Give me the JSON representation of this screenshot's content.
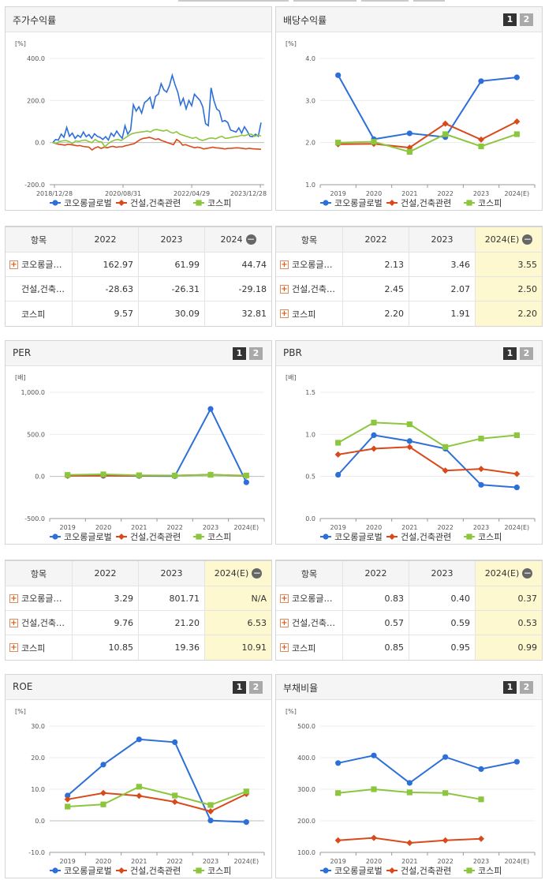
{
  "colors": {
    "group": "#2d6fd8",
    "industry": "#d84a1b",
    "kospi": "#8cc63f"
  },
  "legend": [
    "코오롱글로벌",
    "건설,건축관련",
    "코스피"
  ],
  "pager": [
    "1",
    "2"
  ],
  "panels": {
    "stock": {
      "title": "주가수익률",
      "unit": "[%]"
    },
    "dividend": {
      "title": "배당수익률",
      "unit": "[%]"
    },
    "per": {
      "title": "PER",
      "unit": "[배]"
    },
    "pbr": {
      "title": "PBR",
      "unit": "[배]"
    },
    "roe": {
      "title": "ROE",
      "unit": "[%]"
    },
    "debt": {
      "title": "부채비율",
      "unit": "[%]"
    }
  },
  "chart_data": [
    {
      "id": "stock",
      "type": "line",
      "x_ticks": [
        "2018/12/28",
        "2020/08/31",
        "2022/04/29",
        "2023/12/28"
      ],
      "y_ticks": [
        "400.0",
        "200.0",
        "0.0",
        "-200.0"
      ],
      "ylim": [
        -200,
        400
      ],
      "series": [
        {
          "name": "코오롱글로벌",
          "values": [
            0,
            15,
            12,
            40,
            25,
            72,
            30,
            45,
            20,
            35,
            25,
            50,
            28,
            38,
            20,
            42,
            30,
            25,
            15,
            28,
            12,
            45,
            30,
            55,
            35,
            20,
            80,
            40,
            60,
            180,
            150,
            170,
            140,
            190,
            200,
            215,
            160,
            220,
            230,
            280,
            250,
            240,
            270,
            320,
            275,
            240,
            180,
            210,
            160,
            200,
            175,
            230,
            215,
            200,
            170,
            90,
            80,
            260,
            200,
            160,
            150,
            100,
            105,
            95,
            60,
            55,
            50,
            70,
            45,
            75,
            55,
            30,
            28,
            40,
            30,
            95
          ]
        },
        {
          "name": "건설,건축관련",
          "values": [
            0,
            -5,
            -8,
            -10,
            -12,
            -8,
            -10,
            -12,
            -15,
            -14,
            -18,
            -20,
            -22,
            -35,
            -25,
            -20,
            -28,
            -22,
            -25,
            -20,
            -18,
            -22,
            -20,
            -20,
            -15,
            -12,
            -8,
            -5,
            5,
            15,
            20,
            22,
            25,
            20,
            15,
            18,
            10,
            5,
            0,
            -5,
            -10,
            15,
            5,
            -12,
            -10,
            -15,
            -20,
            -25,
            -22,
            -25,
            -30,
            -28,
            -25,
            -22,
            -25,
            -26,
            -28,
            -30,
            -28,
            -27,
            -26,
            -25,
            -26,
            -28,
            -30,
            -27,
            -29,
            -30,
            -31,
            -32
          ]
        },
        {
          "name": "코스피",
          "values": [
            0,
            -5,
            5,
            8,
            10,
            5,
            -5,
            8,
            5,
            10,
            12,
            5,
            0,
            15,
            5,
            3,
            -20,
            -5,
            5,
            12,
            15,
            10,
            20,
            30,
            40,
            45,
            48,
            50,
            52,
            55,
            50,
            60,
            62,
            58,
            55,
            60,
            50,
            45,
            52,
            40,
            35,
            30,
            25,
            20,
            25,
            15,
            10,
            15,
            20,
            22,
            18,
            25,
            30,
            20,
            22,
            25,
            28,
            30,
            35,
            33,
            38,
            40,
            30,
            35,
            32
          ]
        }
      ]
    },
    {
      "id": "dividend",
      "type": "line",
      "categories": [
        "2019",
        "2020",
        "2021",
        "2022",
        "2023",
        "2024(E)"
      ],
      "y_ticks": [
        "4.0",
        "3.0",
        "2.0",
        "1.0"
      ],
      "ylim": [
        1,
        4
      ],
      "series": [
        {
          "name": "코오롱글로벌",
          "values": [
            3.6,
            2.08,
            2.22,
            2.13,
            3.46,
            3.55
          ]
        },
        {
          "name": "건설,건축관련",
          "values": [
            1.96,
            1.97,
            1.88,
            2.45,
            2.07,
            2.5
          ]
        },
        {
          "name": "코스피",
          "values": [
            2.0,
            2.02,
            1.78,
            2.2,
            1.91,
            2.2
          ]
        }
      ]
    },
    {
      "id": "per",
      "type": "line",
      "categories": [
        "2019",
        "2020",
        "2021",
        "2022",
        "2023",
        "2024(E)"
      ],
      "y_ticks": [
        "1,000.0",
        "500.0",
        "0.0",
        "-500.0"
      ],
      "ylim": [
        -500,
        1000
      ],
      "series": [
        {
          "name": "코오롱글로벌",
          "values": [
            10,
            8,
            6,
            3.29,
            801.71,
            -70
          ]
        },
        {
          "name": "건설,건축관련",
          "values": [
            8,
            10,
            9,
            9.76,
            21.2,
            6.53
          ]
        },
        {
          "name": "코스피",
          "values": [
            18,
            25,
            14,
            10.85,
            19.36,
            10.91
          ]
        }
      ]
    },
    {
      "id": "pbr",
      "type": "line",
      "categories": [
        "2019",
        "2020",
        "2021",
        "2022",
        "2023",
        "2024(E)"
      ],
      "y_ticks": [
        "1.5",
        "1.0",
        "0.5",
        "0.0"
      ],
      "ylim": [
        0,
        1.5
      ],
      "series": [
        {
          "name": "코오롱글로벌",
          "values": [
            0.52,
            0.99,
            0.92,
            0.83,
            0.4,
            0.37
          ]
        },
        {
          "name": "건설,건축관련",
          "values": [
            0.76,
            0.83,
            0.85,
            0.57,
            0.59,
            0.53
          ]
        },
        {
          "name": "코스피",
          "values": [
            0.9,
            1.14,
            1.12,
            0.85,
            0.95,
            0.99
          ]
        }
      ]
    },
    {
      "id": "roe",
      "type": "line",
      "categories": [
        "2019",
        "2020",
        "2021",
        "2022",
        "2023",
        "2024(E)"
      ],
      "y_ticks": [
        "30.0",
        "20.0",
        "10.0",
        "0.0",
        "-10.0"
      ],
      "ylim": [
        -10,
        30
      ],
      "series": [
        {
          "name": "코오롱글로벌",
          "values": [
            8.0,
            17.8,
            25.8,
            24.9,
            0.1,
            -0.4
          ]
        },
        {
          "name": "건설,건축관련",
          "values": [
            6.8,
            8.8,
            7.9,
            6.0,
            3.0,
            8.5
          ]
        },
        {
          "name": "코스피",
          "values": [
            4.5,
            5.2,
            10.8,
            8.0,
            5.0,
            9.3
          ]
        }
      ]
    },
    {
      "id": "debt",
      "type": "line",
      "categories": [
        "2019",
        "2020",
        "2021",
        "2022",
        "2023",
        "2024(E)"
      ],
      "y_ticks": [
        "500.0",
        "400.0",
        "300.0",
        "200.0",
        "100.0"
      ],
      "ylim": [
        100,
        500
      ],
      "series": [
        {
          "name": "코오롱글로벌",
          "values": [
            383,
            407,
            320,
            402,
            364,
            387
          ]
        },
        {
          "name": "건설,건축관련",
          "values": [
            138,
            146,
            130,
            138,
            143,
            null
          ]
        },
        {
          "name": "코스피",
          "values": [
            288,
            300,
            290,
            288,
            268,
            null
          ]
        }
      ]
    }
  ],
  "tables": {
    "stock": {
      "headers": [
        "항목",
        "2022",
        "2023",
        "2024"
      ],
      "rows": [
        {
          "label": "코오롱글…",
          "plus": true,
          "values": [
            "162.97",
            "61.99",
            "44.74"
          ]
        },
        {
          "label": "건설,건축…",
          "plus": false,
          "values": [
            "-28.63",
            "-26.31",
            "-29.18"
          ]
        },
        {
          "label": "코스피",
          "plus": false,
          "values": [
            "9.57",
            "30.09",
            "32.81"
          ]
        }
      ]
    },
    "dividend": {
      "headers": [
        "항목",
        "2022",
        "2023",
        "2024(E)"
      ],
      "rows": [
        {
          "label": "코오롱글…",
          "plus": true,
          "values": [
            "2.13",
            "3.46",
            "3.55"
          ]
        },
        {
          "label": "건설,건축…",
          "plus": true,
          "values": [
            "2.45",
            "2.07",
            "2.50"
          ]
        },
        {
          "label": "코스피",
          "plus": true,
          "values": [
            "2.20",
            "1.91",
            "2.20"
          ]
        }
      ]
    },
    "per": {
      "headers": [
        "항목",
        "2022",
        "2023",
        "2024(E)"
      ],
      "rows": [
        {
          "label": "코오롱글…",
          "plus": true,
          "values": [
            "3.29",
            "801.71",
            "N/A"
          ]
        },
        {
          "label": "건설,건축…",
          "plus": true,
          "values": [
            "9.76",
            "21.20",
            "6.53"
          ]
        },
        {
          "label": "코스피",
          "plus": true,
          "values": [
            "10.85",
            "19.36",
            "10.91"
          ]
        }
      ]
    },
    "pbr": {
      "headers": [
        "항목",
        "2022",
        "2023",
        "2024(E)"
      ],
      "rows": [
        {
          "label": "코오롱글…",
          "plus": true,
          "values": [
            "0.83",
            "0.40",
            "0.37"
          ]
        },
        {
          "label": "건설,건축…",
          "plus": true,
          "values": [
            "0.57",
            "0.59",
            "0.53"
          ]
        },
        {
          "label": "코스피",
          "plus": true,
          "values": [
            "0.85",
            "0.95",
            "0.99"
          ]
        }
      ]
    }
  }
}
